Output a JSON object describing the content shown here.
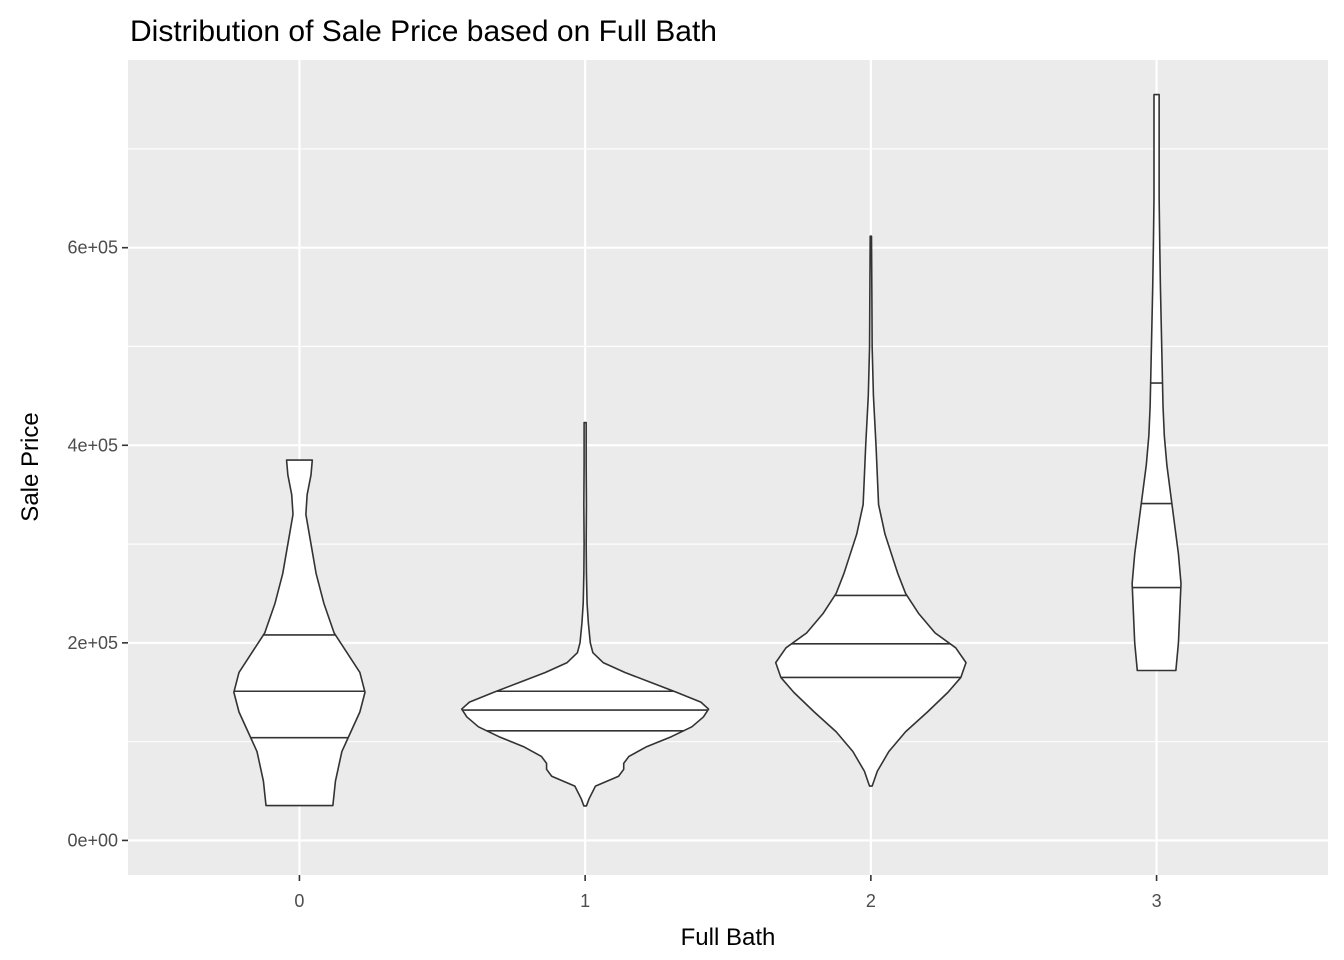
{
  "chart_data": {
    "type": "violin",
    "title": "Distribution of Sale Price based on Full Bath",
    "xlabel": "Full Bath",
    "ylabel": "Sale Price",
    "categories": [
      "0",
      "1",
      "2",
      "3"
    ],
    "y_ticks": [
      0,
      200000,
      400000,
      600000
    ],
    "y_tick_labels": [
      "0e+00",
      "2e+05",
      "4e+05",
      "6e+05"
    ],
    "ylim": [
      -35000,
      790000
    ],
    "grid": true,
    "panel_background": "#ebebeb",
    "grid_color": "#ffffff",
    "violin_fill": "#ffffff",
    "violin_stroke": "#333333",
    "violins": [
      {
        "category": "0",
        "min": 35311,
        "max": 385000,
        "quantiles": [
          104000,
          151000,
          208000
        ],
        "profile": [
          [
            35311,
            0.26
          ],
          [
            60000,
            0.28
          ],
          [
            90000,
            0.33
          ],
          [
            110000,
            0.4
          ],
          [
            130000,
            0.47
          ],
          [
            150000,
            0.51
          ],
          [
            170000,
            0.47
          ],
          [
            190000,
            0.37
          ],
          [
            210000,
            0.27
          ],
          [
            240000,
            0.19
          ],
          [
            270000,
            0.13
          ],
          [
            300000,
            0.09
          ],
          [
            330000,
            0.05
          ],
          [
            350000,
            0.06
          ],
          [
            370000,
            0.09
          ],
          [
            385000,
            0.1
          ]
        ]
      },
      {
        "category": "1",
        "min": 34900,
        "max": 423000,
        "quantiles": [
          111000,
          132000,
          151000
        ],
        "profile": [
          [
            34900,
            0.01
          ],
          [
            42000,
            0.03
          ],
          [
            55000,
            0.08
          ],
          [
            65000,
            0.26
          ],
          [
            72000,
            0.3
          ],
          [
            78000,
            0.3
          ],
          [
            85000,
            0.34
          ],
          [
            95000,
            0.48
          ],
          [
            105000,
            0.67
          ],
          [
            115000,
            0.83
          ],
          [
            125000,
            0.92
          ],
          [
            133000,
            0.96
          ],
          [
            140000,
            0.9
          ],
          [
            150000,
            0.71
          ],
          [
            160000,
            0.51
          ],
          [
            170000,
            0.31
          ],
          [
            180000,
            0.14
          ],
          [
            190000,
            0.06
          ],
          [
            200000,
            0.04
          ],
          [
            220000,
            0.025
          ],
          [
            240000,
            0.015
          ],
          [
            270000,
            0.01
          ],
          [
            300000,
            0.008
          ],
          [
            340000,
            0.01
          ],
          [
            380000,
            0.008
          ],
          [
            423000,
            0.008
          ]
        ]
      },
      {
        "category": "2",
        "min": 55000,
        "max": 611657,
        "quantiles": [
          165000,
          199000,
          248000
        ],
        "profile": [
          [
            55000,
            0.01
          ],
          [
            70000,
            0.05
          ],
          [
            90000,
            0.14
          ],
          [
            110000,
            0.27
          ],
          [
            130000,
            0.44
          ],
          [
            150000,
            0.6
          ],
          [
            165000,
            0.7
          ],
          [
            180000,
            0.74
          ],
          [
            195000,
            0.66
          ],
          [
            210000,
            0.5
          ],
          [
            230000,
            0.37
          ],
          [
            250000,
            0.27
          ],
          [
            270000,
            0.21
          ],
          [
            290000,
            0.16
          ],
          [
            310000,
            0.11
          ],
          [
            340000,
            0.06
          ],
          [
            370000,
            0.05
          ],
          [
            400000,
            0.04
          ],
          [
            450000,
            0.02
          ],
          [
            500000,
            0.01
          ],
          [
            550000,
            0.008
          ],
          [
            611657,
            0.005
          ]
        ]
      },
      {
        "category": "3",
        "min": 172000,
        "max": 755000,
        "quantiles": [
          256000,
          341000,
          463000
        ],
        "profile": [
          [
            172000,
            0.15
          ],
          [
            200000,
            0.17
          ],
          [
            230000,
            0.18
          ],
          [
            260000,
            0.19
          ],
          [
            290000,
            0.17
          ],
          [
            320000,
            0.14
          ],
          [
            350000,
            0.11
          ],
          [
            380000,
            0.08
          ],
          [
            410000,
            0.06
          ],
          [
            440000,
            0.05
          ],
          [
            470000,
            0.045
          ],
          [
            500000,
            0.04
          ],
          [
            530000,
            0.035
          ],
          [
            560000,
            0.03
          ],
          [
            600000,
            0.025
          ],
          [
            650000,
            0.02
          ],
          [
            700000,
            0.02
          ],
          [
            755000,
            0.02
          ]
        ]
      }
    ]
  }
}
